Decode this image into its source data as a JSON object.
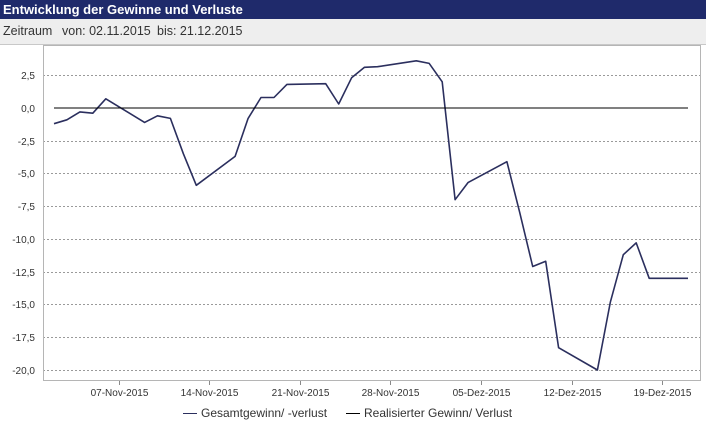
{
  "header": {
    "title": "Entwicklung der Gewinne und Verluste"
  },
  "range": {
    "label": "Zeitraum",
    "from": "von: 02.11.2015",
    "to": "bis: 21.12.2015"
  },
  "colors": {
    "title_bg": "#1f2a6b",
    "series_total": "#2b2f5e",
    "series_realized": "#000000"
  },
  "chart_data": {
    "type": "line",
    "ylim": [
      -20,
      4.5
    ],
    "yticks": [
      2.5,
      0,
      -2.5,
      -5,
      -7.5,
      -10,
      -12.5,
      -15,
      -17.5,
      -20
    ],
    "ytick_labels": [
      "2,5",
      "0,0",
      "-2,5",
      "-5,0",
      "-7,5",
      "-10,0",
      "-12,5",
      "-15,0",
      "-17,5",
      "-20,0"
    ],
    "xlim": [
      "2015-11-02",
      "2015-12-21"
    ],
    "xticks": [
      "2015-11-07",
      "2015-11-14",
      "2015-11-21",
      "2015-11-28",
      "2015-12-05",
      "2015-12-12",
      "2015-12-19"
    ],
    "xtick_labels": [
      "07-Nov-2015",
      "14-Nov-2015",
      "21-Nov-2015",
      "28-Nov-2015",
      "05-Dez-2015",
      "12-Dez-2015",
      "19-Dez-2015"
    ],
    "grid": true,
    "legend_position": "bottom",
    "series": [
      {
        "name": "Gesamtgewinn/ -verlust",
        "x": [
          "2015-11-02",
          "2015-11-03",
          "2015-11-04",
          "2015-11-05",
          "2015-11-06",
          "2015-11-09",
          "2015-11-10",
          "2015-11-11",
          "2015-11-12",
          "2015-11-13",
          "2015-11-16",
          "2015-11-17",
          "2015-11-18",
          "2015-11-19",
          "2015-11-20",
          "2015-11-23",
          "2015-11-24",
          "2015-11-25",
          "2015-11-26",
          "2015-11-27",
          "2015-11-30",
          "2015-12-01",
          "2015-12-02",
          "2015-12-03",
          "2015-12-04",
          "2015-12-07",
          "2015-12-08",
          "2015-12-09",
          "2015-12-10",
          "2015-12-11",
          "2015-12-14",
          "2015-12-15",
          "2015-12-16",
          "2015-12-17",
          "2015-12-18",
          "2015-12-21"
        ],
        "y": [
          -1.2,
          -0.9,
          -0.3,
          -0.4,
          0.7,
          -1.1,
          -0.6,
          -0.8,
          -3.5,
          -5.9,
          -3.7,
          -0.8,
          0.8,
          0.8,
          1.8,
          1.85,
          0.3,
          2.3,
          3.1,
          3.15,
          3.6,
          3.4,
          2.0,
          -7.0,
          -5.7,
          -4.1,
          -8.0,
          -12.1,
          -11.7,
          -18.3,
          -20.0,
          -14.8,
          -11.2,
          -10.3,
          -13.0,
          -13.0
        ]
      },
      {
        "name": "Realisierter Gewinn/ Verlust",
        "x": [
          "2015-11-02",
          "2015-12-21"
        ],
        "y": [
          0,
          0
        ]
      }
    ]
  }
}
